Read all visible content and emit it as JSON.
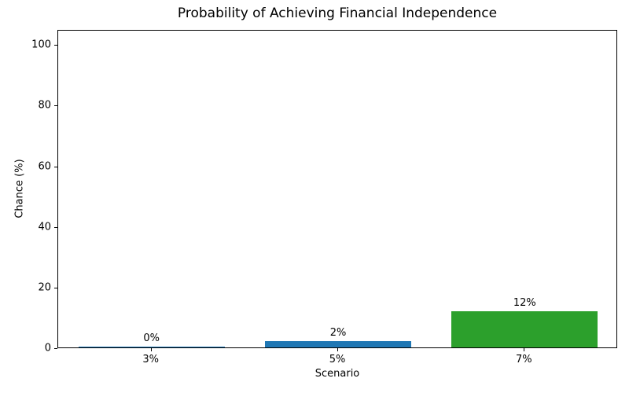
{
  "chart_data": {
    "type": "bar",
    "title": "Probability of Achieving Financial Independence",
    "xlabel": "Scenario",
    "ylabel": "Chance (%)",
    "categories": [
      "3%",
      "5%",
      "7%"
    ],
    "values": [
      0.3,
      2,
      12
    ],
    "bar_labels": [
      "0%",
      "2%",
      "12%"
    ],
    "bar_colors": [
      "#1f77b4",
      "#1f77b4",
      "#2ca02c"
    ],
    "yticks": [
      0,
      20,
      40,
      60,
      80,
      100
    ],
    "ylim": [
      0,
      105
    ],
    "grid": "off",
    "legend": "none",
    "axis_color": "#000000"
  }
}
